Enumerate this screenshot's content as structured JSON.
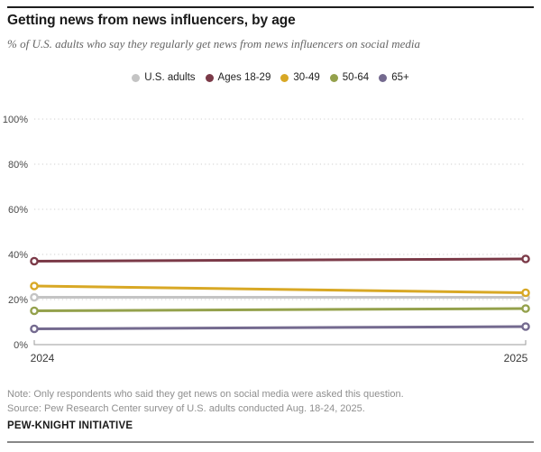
{
  "header": {
    "title": "Getting news from news influencers, by age",
    "subtitle": "% of U.S. adults who say they regularly get news from news influencers on social media"
  },
  "chart_data": {
    "type": "line",
    "x": [
      2024,
      2025
    ],
    "x_tick_labels": [
      "2024",
      "2025"
    ],
    "series": [
      {
        "name": "U.S. adults",
        "values": [
          21,
          21
        ],
        "color": "#c4c4c4"
      },
      {
        "name": "Ages 18-29",
        "values": [
          37,
          38
        ],
        "color": "#7b3a48"
      },
      {
        "name": "30-49",
        "values": [
          26,
          23
        ],
        "color": "#d8a825"
      },
      {
        "name": "50-64",
        "values": [
          15,
          16
        ],
        "color": "#94a14c"
      },
      {
        "name": "65+",
        "values": [
          7,
          8
        ],
        "color": "#746a8f"
      }
    ],
    "ylim": [
      0,
      100
    ],
    "y_ticks": [
      0,
      20,
      40,
      60,
      80,
      100
    ],
    "y_tick_labels": [
      "0%",
      "20%",
      "40%",
      "60%",
      "80%",
      "100%"
    ],
    "grid": "horizontal-dotted",
    "legend_position": "top-center",
    "marker_style": "open-circle-at-endpoints"
  },
  "colors": {
    "grid": "#cfcfcf",
    "axis": "#9b9b9b",
    "tick_text": "#4a4a4a",
    "x_label_text": "#383838"
  },
  "footer": {
    "note": "Note: Only respondents who said they get news on social media were asked this question.",
    "source": "Source: Pew Research Center survey of U.S. adults conducted Aug. 18-24, 2025.",
    "brand": "PEW-KNIGHT INITIATIVE"
  }
}
